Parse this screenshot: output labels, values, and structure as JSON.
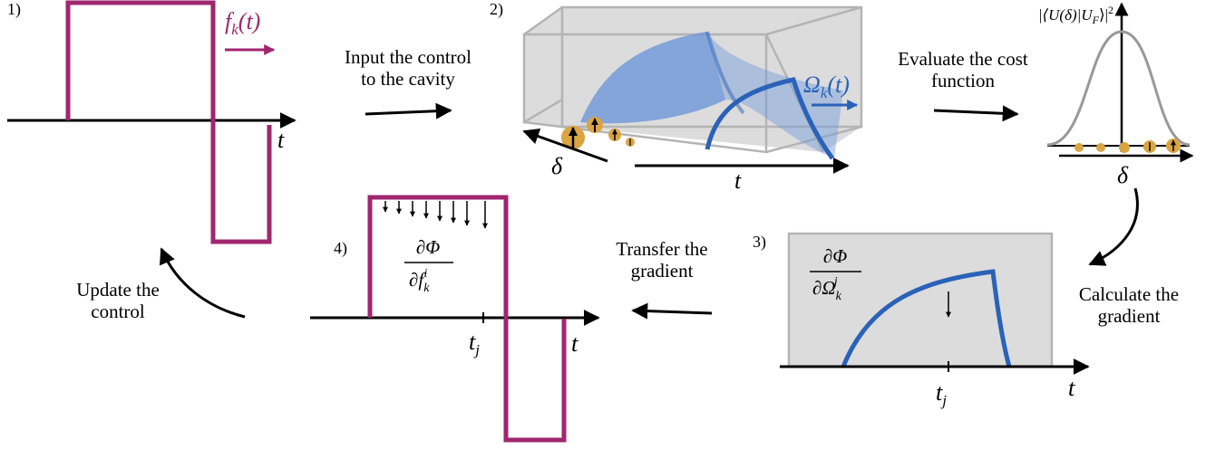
{
  "step1": {
    "number": "1)",
    "signal": {
      "base": "f",
      "sub": "k",
      "rest": "(t)"
    },
    "time_axis": "t"
  },
  "arrow_input": {
    "lines": [
      "Input the control",
      "to the cavity"
    ]
  },
  "step2": {
    "number": "2)",
    "field": {
      "base": "Ω",
      "sub": "k",
      "rest": "(t)"
    },
    "detuning_axis": "δ",
    "time_axis": "t"
  },
  "arrow_evaluate": {
    "lines": [
      "Evaluate the cost",
      "function"
    ]
  },
  "cost": {
    "label": {
      "pre": "|⟨U(δ)|U",
      "sub": "F",
      "post": "⟩|",
      "sup": "2"
    },
    "axis": "δ"
  },
  "arrow_calculate": {
    "lines": [
      "Calculate the",
      "gradient"
    ]
  },
  "step3": {
    "number": "3)",
    "gradient": {
      "num": "∂Φ",
      "den_base": "∂Ω",
      "den_sub": "k",
      "den_sup": "j"
    },
    "tick": {
      "base": "t",
      "sub": "j"
    },
    "time_axis": "t"
  },
  "arrow_transfer": {
    "lines": [
      "Transfer the",
      "gradient"
    ]
  },
  "step4": {
    "number": "4)",
    "gradient": {
      "num": "∂Φ",
      "den_base": "∂f",
      "den_sub": "k",
      "den_sup": "i"
    },
    "tick": {
      "base": "t",
      "sub": "j"
    },
    "time_axis": "t"
  },
  "arrow_update": {
    "lines": [
      "Update the",
      "control"
    ]
  }
}
